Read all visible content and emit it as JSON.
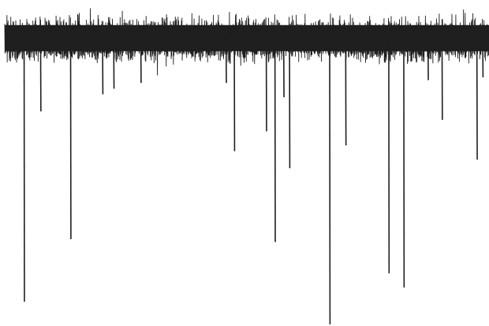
{
  "image": {
    "kind": "electrophysiology-recording-trace",
    "background_color": "#ffffff",
    "trace_color": "#1f1f1f"
  },
  "chart_data": {
    "type": "line",
    "title": "",
    "xlabel": "",
    "ylabel": "",
    "grid": false,
    "legend": "none",
    "ylim": [
      -1.0,
      0.12
    ],
    "baseline_band": [
      -0.07,
      0.09
    ],
    "spikes": [
      {
        "x": 0.04,
        "y": -0.92
      },
      {
        "x": 0.074,
        "y": -0.25
      },
      {
        "x": 0.136,
        "y": -0.7
      },
      {
        "x": 0.202,
        "y": -0.19
      },
      {
        "x": 0.225,
        "y": -0.17
      },
      {
        "x": 0.281,
        "y": -0.15
      },
      {
        "x": 0.457,
        "y": -0.15
      },
      {
        "x": 0.474,
        "y": -0.39
      },
      {
        "x": 0.54,
        "y": -0.32
      },
      {
        "x": 0.558,
        "y": -0.71
      },
      {
        "x": 0.576,
        "y": -0.2
      },
      {
        "x": 0.588,
        "y": -0.45
      },
      {
        "x": 0.671,
        "y": -1.0
      },
      {
        "x": 0.704,
        "y": -0.37
      },
      {
        "x": 0.793,
        "y": -0.82
      },
      {
        "x": 0.824,
        "y": -0.87
      },
      {
        "x": 0.874,
        "y": -0.14
      },
      {
        "x": 0.903,
        "y": -0.28
      },
      {
        "x": 0.975,
        "y": -0.42
      },
      {
        "x": 0.987,
        "y": -0.13
      }
    ]
  }
}
